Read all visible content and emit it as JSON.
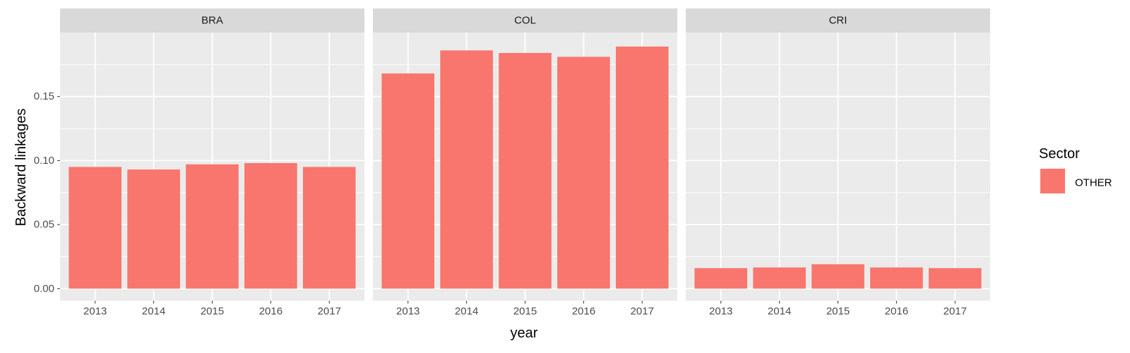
{
  "chart_data": {
    "type": "bar",
    "facet_variable": "country",
    "facets": [
      {
        "name": "BRA",
        "categories": [
          "2013",
          "2014",
          "2015",
          "2016",
          "2017"
        ],
        "values": [
          0.095,
          0.093,
          0.097,
          0.098,
          0.095
        ]
      },
      {
        "name": "COL",
        "categories": [
          "2013",
          "2014",
          "2015",
          "2016",
          "2017"
        ],
        "values": [
          0.168,
          0.186,
          0.184,
          0.181,
          0.189
        ]
      },
      {
        "name": "CRI",
        "categories": [
          "2013",
          "2014",
          "2015",
          "2016",
          "2017"
        ],
        "values": [
          0.016,
          0.0165,
          0.019,
          0.0165,
          0.016
        ]
      }
    ],
    "xlabel": "year",
    "ylabel": "Backward linkages",
    "ylim": [
      -0.0095,
      0.2
    ],
    "y_ticks": [
      0.0,
      0.05,
      0.1,
      0.15
    ],
    "y_tick_labels": [
      "0.00",
      "0.05",
      "0.10",
      "0.15"
    ],
    "grid": true,
    "legend": {
      "title": "Sector",
      "entries": [
        "OTHER"
      ],
      "placement": "right"
    },
    "colors": {
      "bar": "#F8766D",
      "panel_background": "#EBEBEB",
      "grid_major": "#FFFFFF",
      "strip_background": "#D9D9D9"
    }
  }
}
